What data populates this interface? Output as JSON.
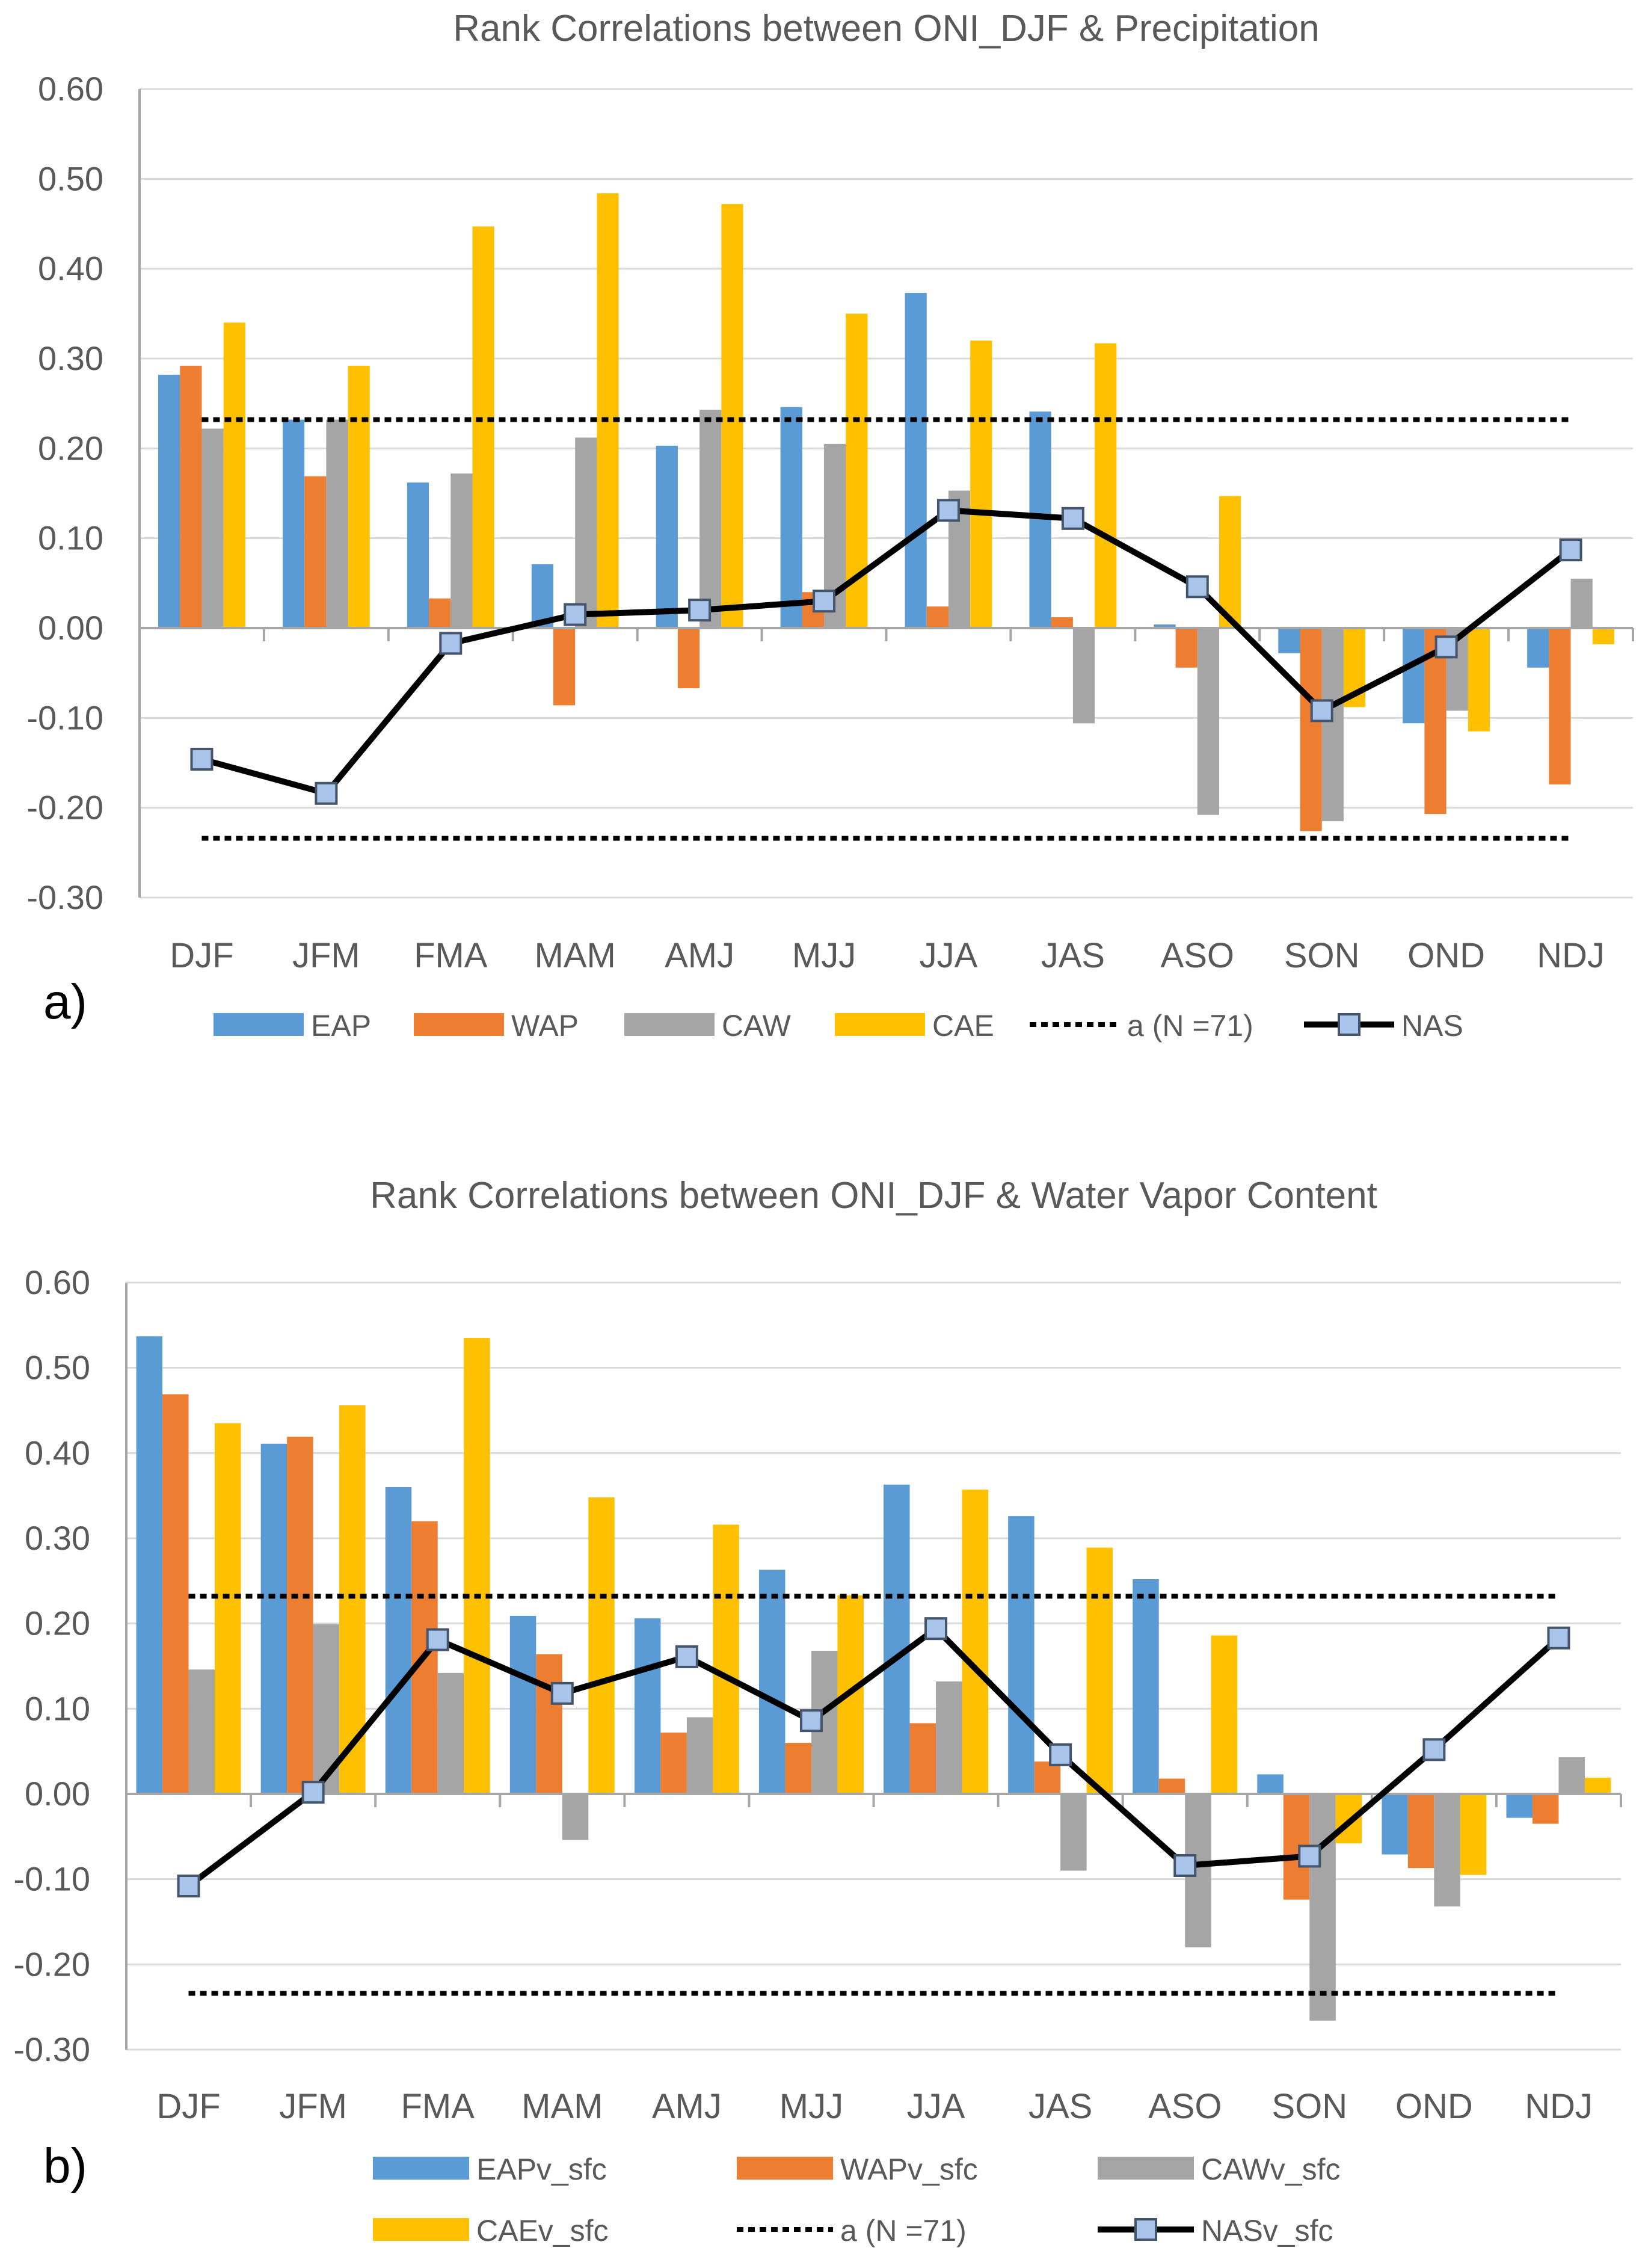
{
  "colors": {
    "EAP": "#5B9BD5",
    "WAP": "#ED7D31",
    "CAW": "#A5A5A5",
    "CAE": "#FFC000",
    "line": "#000000",
    "marker_fill": "#A9C4EB",
    "marker_edge": "#44546A",
    "axis": "#A6A6A6",
    "text": "#595959"
  },
  "chart_data": [
    {
      "type": "bar",
      "panel_label": "a)",
      "title": "Rank Correlations between ONI_DJF & Precipitation",
      "categories": [
        "DJF",
        "JFM",
        "FMA",
        "MAM",
        "AMJ",
        "MJJ",
        "JJA",
        "JAS",
        "ASO",
        "SON",
        "OND",
        "NDJ"
      ],
      "ylim": [
        -0.3,
        0.6
      ],
      "yticks": [
        "0.60",
        "0.50",
        "0.40",
        "0.30",
        "0.20",
        "0.10",
        "0.00",
        "-0.10",
        "-0.20",
        "-0.30"
      ],
      "series": [
        {
          "name": "EAP",
          "color_key": "EAP",
          "values": [
            0.282,
            0.232,
            0.162,
            0.071,
            0.203,
            0.246,
            0.373,
            0.241,
            0.004,
            -0.028,
            -0.106,
            -0.044
          ]
        },
        {
          "name": "WAP",
          "color_key": "WAP",
          "values": [
            0.292,
            0.169,
            0.033,
            -0.086,
            -0.067,
            0.04,
            0.024,
            0.012,
            -0.044,
            -0.226,
            -0.207,
            -0.174
          ]
        },
        {
          "name": "CAW",
          "color_key": "CAW",
          "values": [
            0.222,
            0.232,
            0.172,
            0.212,
            0.243,
            0.205,
            0.153,
            -0.106,
            -0.208,
            -0.215,
            -0.092,
            0.055
          ]
        },
        {
          "name": "CAE",
          "color_key": "CAE",
          "values": [
            0.34,
            0.292,
            0.447,
            0.484,
            0.472,
            0.35,
            0.32,
            0.317,
            0.147,
            -0.088,
            -0.115,
            -0.018
          ]
        }
      ],
      "threshold": {
        "name": "a (N =71)",
        "values": [
          0.232,
          -0.234
        ]
      },
      "line": {
        "name": "NAS",
        "values": [
          -0.146,
          -0.184,
          -0.017,
          0.015,
          0.02,
          0.03,
          0.131,
          0.122,
          0.046,
          -0.092,
          -0.021,
          0.087
        ]
      },
      "legend_rows": [
        [
          "EAP",
          "WAP",
          "CAW",
          "CAE",
          "a (N =71)",
          "NAS"
        ]
      ]
    },
    {
      "type": "bar",
      "panel_label": "b)",
      "title": "Rank Correlations between ONI_DJF & Water Vapor Content",
      "categories": [
        "DJF",
        "JFM",
        "FMA",
        "MAM",
        "AMJ",
        "MJJ",
        "JJA",
        "JAS",
        "ASO",
        "SON",
        "OND",
        "NDJ"
      ],
      "ylim": [
        -0.3,
        0.6
      ],
      "yticks": [
        "0.60",
        "0.50",
        "0.40",
        "0.30",
        "0.20",
        "0.10",
        "0.00",
        "-0.10",
        "-0.20",
        "-0.30"
      ],
      "series": [
        {
          "name": "EAPv_sfc",
          "color_key": "EAP",
          "values": [
            0.537,
            0.411,
            0.36,
            0.209,
            0.206,
            0.263,
            0.363,
            0.326,
            0.252,
            0.023,
            -0.071,
            -0.028
          ]
        },
        {
          "name": "WAPv_sfc",
          "color_key": "WAP",
          "values": [
            0.469,
            0.419,
            0.32,
            0.164,
            0.072,
            0.06,
            0.083,
            0.038,
            0.018,
            -0.124,
            -0.087,
            -0.035
          ]
        },
        {
          "name": "CAWv_sfc",
          "color_key": "CAW",
          "values": [
            0.146,
            0.199,
            0.142,
            -0.054,
            0.09,
            0.168,
            0.132,
            -0.09,
            -0.18,
            -0.266,
            -0.132,
            0.043
          ]
        },
        {
          "name": "CAEv_sfc",
          "color_key": "CAE",
          "values": [
            0.435,
            0.456,
            0.535,
            0.348,
            0.316,
            0.233,
            0.357,
            0.289,
            0.186,
            -0.058,
            -0.095,
            0.019
          ]
        }
      ],
      "threshold": {
        "name": "a (N =71)",
        "values": [
          0.232,
          -0.234
        ]
      },
      "line": {
        "name": "NASv_sfc",
        "values": [
          -0.108,
          0.002,
          0.181,
          0.118,
          0.161,
          0.086,
          0.194,
          0.046,
          -0.084,
          -0.073,
          0.052,
          0.183
        ]
      },
      "legend_rows": [
        [
          "EAPv_sfc",
          "WAPv_sfc",
          "CAWv_sfc"
        ],
        [
          "CAEv_sfc",
          "a (N =71)",
          "NASv_sfc"
        ]
      ]
    }
  ]
}
